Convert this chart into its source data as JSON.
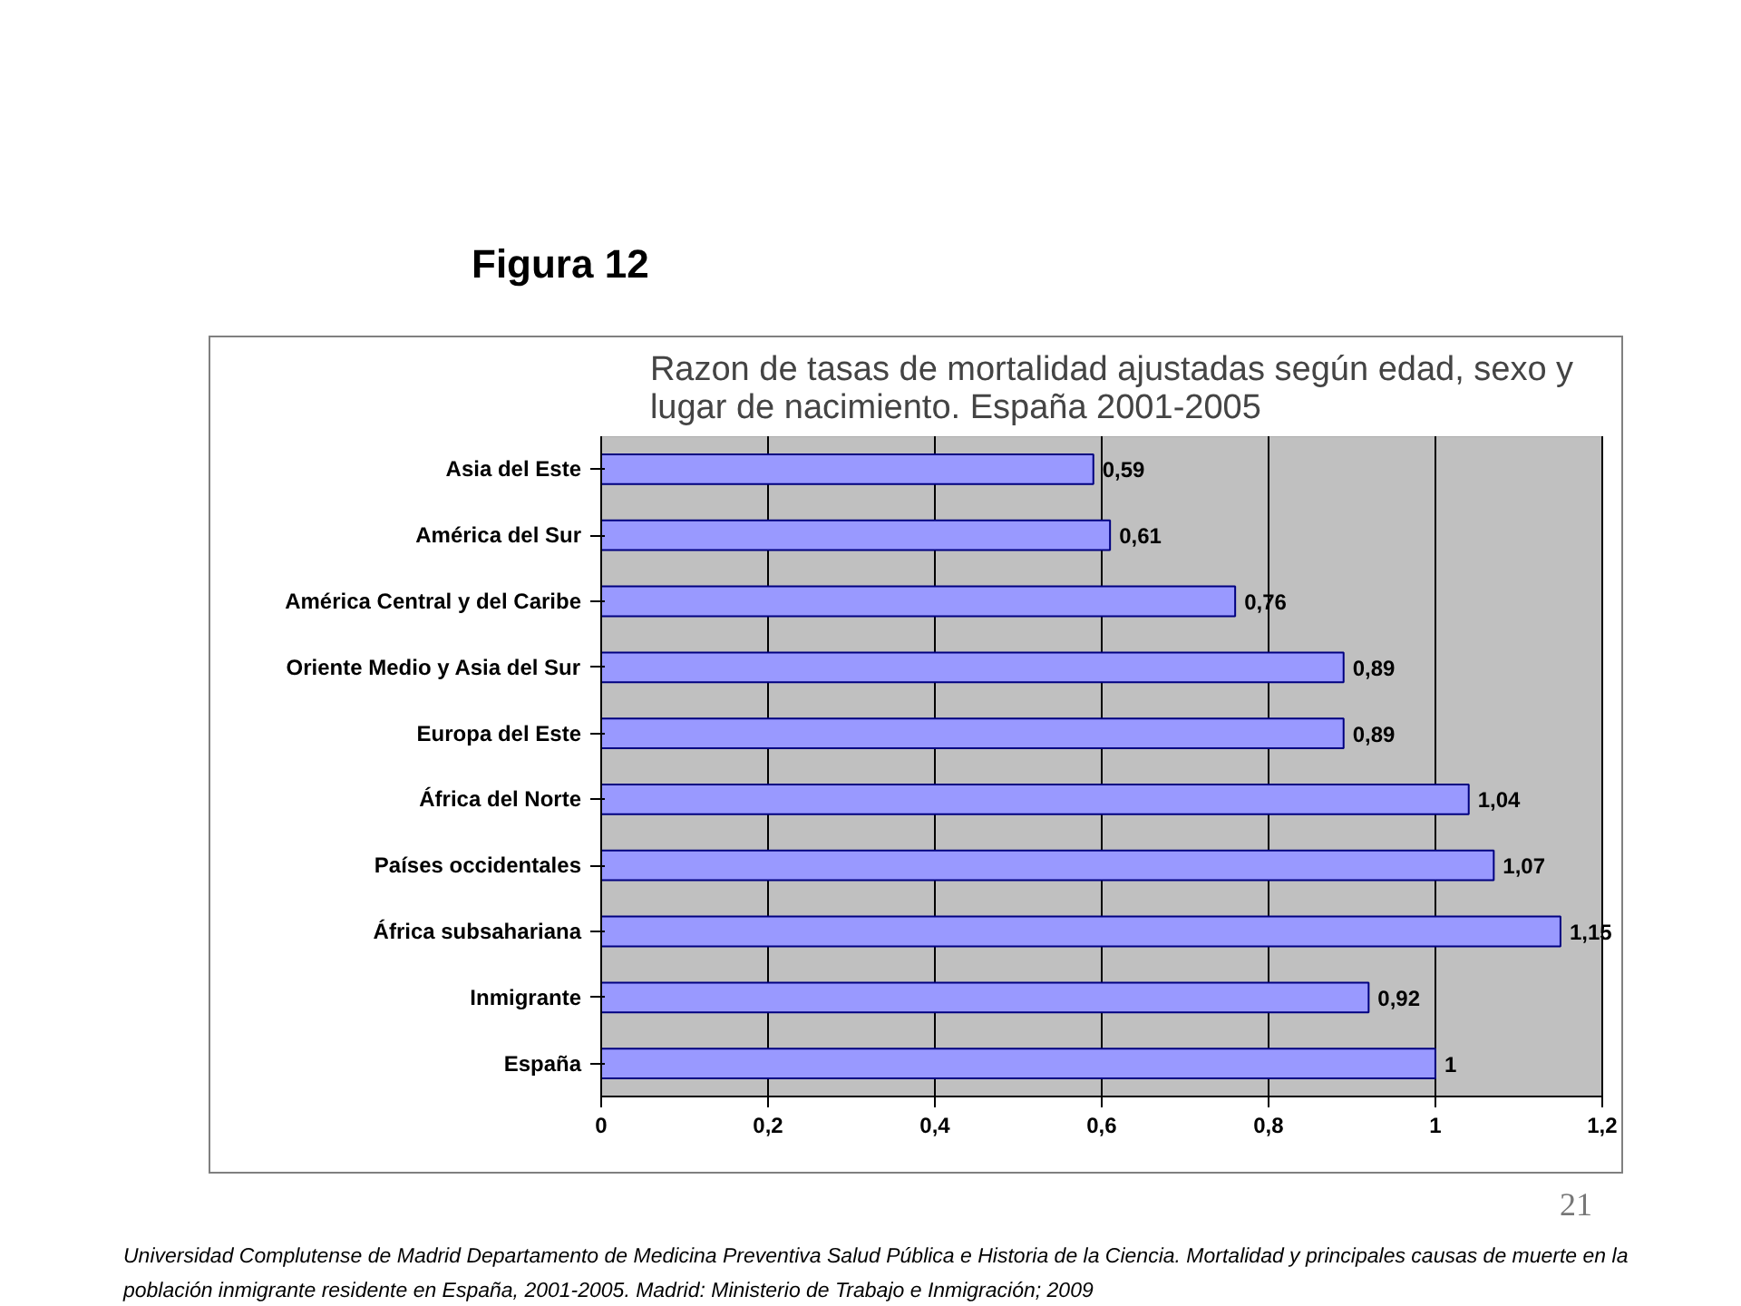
{
  "chart_data": {
    "type": "bar",
    "orientation": "horizontal",
    "title": "Razon de tasas de mortalidad ajustadas según edad, sexo y lugar de nacimiento. España 2001-2005",
    "subtitle": "Figura 12",
    "categories": [
      "Asia del Este",
      "América del Sur",
      "América Central y del Caribe",
      "Oriente Medio y Asia del Sur",
      "Europa del Este",
      "África del Norte",
      "Países occidentales",
      "África subsahariana",
      "Inmigrante",
      "España"
    ],
    "values": [
      0.59,
      0.61,
      0.76,
      0.89,
      0.89,
      1.04,
      1.07,
      1.15,
      0.92,
      1
    ],
    "value_labels": [
      "0,59",
      "0,61",
      "0,76",
      "0,89",
      "0,89",
      "1,04",
      "1,07",
      "1,15",
      "0,92",
      "1"
    ],
    "color": "#9999ff",
    "xlim": [
      0,
      1.2
    ],
    "xticks": [
      0,
      {
        "value": 0.2,
        "label": "0,2"
      },
      {
        "value": 0.4,
        "label": "0,4"
      },
      {
        "value": 0.6,
        "label": "0,6"
      },
      {
        "value": 0.8,
        "label": "0,8"
      },
      1,
      {
        "value": 1.2,
        "label": "1,2"
      }
    ],
    "grid": "x",
    "annotations": [
      "Universidad Complutense de Madrid Departamento de Medicina Preventiva Salud Pública e Historia de la Ciencia. Mortalidad y principales causas de muerte en la población inmigrante residente en España, 2001-2005.  Madrid: Ministerio de Trabajo e Inmigración; 2009",
      "21"
    ]
  }
}
